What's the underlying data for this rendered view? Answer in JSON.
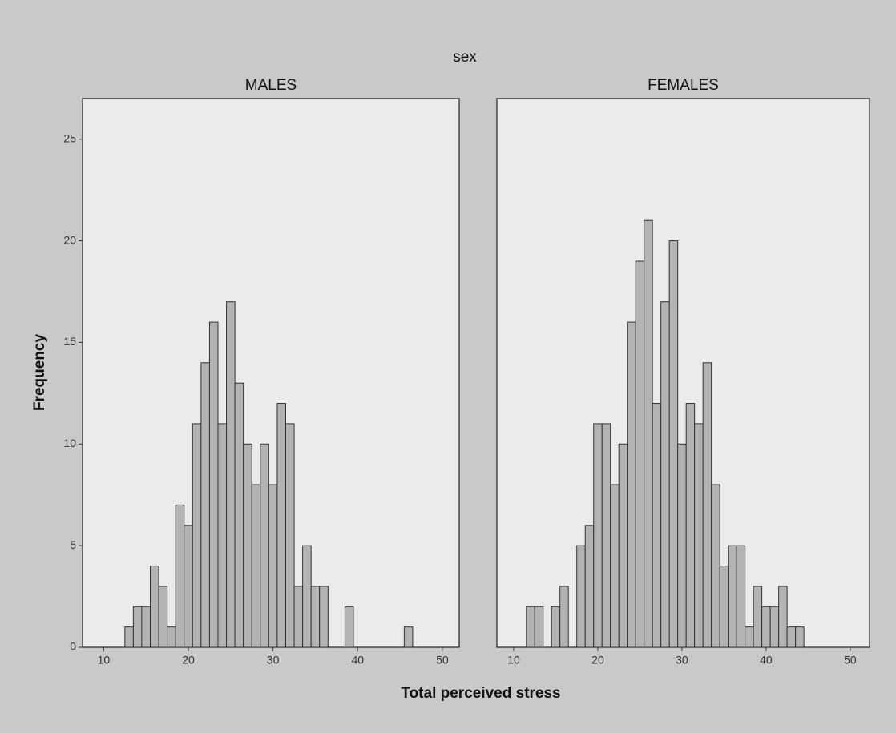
{
  "title": "sex",
  "x_label": "Total perceived stress",
  "y_label": "Frequency",
  "chart_data": [
    {
      "type": "histogram",
      "title": "MALES",
      "color": "#b3b3b3",
      "bins": [
        12.5,
        13.5,
        14.5,
        15.5,
        16.5,
        17.5,
        18.5,
        19.5,
        20.5,
        21.5,
        22.5,
        23.5,
        24.5,
        25.5,
        26.5,
        27.5,
        28.5,
        29.5,
        30.5,
        31.5,
        32.5,
        33.5,
        34.5,
        35.5,
        36.5,
        37.5,
        38.5,
        39.5,
        40.5,
        41.5,
        42.5,
        43.5,
        44.5,
        45.5,
        46.5
      ],
      "counts": [
        1,
        2,
        2,
        4,
        3,
        1,
        7,
        6,
        11,
        14,
        16,
        11,
        17,
        13,
        10,
        8,
        10,
        8,
        12,
        11,
        3,
        5,
        3,
        3,
        0,
        0,
        2,
        0,
        0,
        0,
        0,
        0,
        0,
        1
      ],
      "xlim": [
        7.5,
        52
      ],
      "xticks": [
        10,
        20,
        30,
        40,
        50
      ],
      "ylim": [
        0,
        27
      ],
      "yticks": [
        0,
        5,
        10,
        15,
        20,
        25
      ]
    },
    {
      "type": "histogram",
      "title": "FEMALES",
      "color": "#b3b3b3",
      "bins": [
        11.5,
        12.5,
        13.5,
        14.5,
        15.5,
        16.5,
        17.5,
        18.5,
        19.5,
        20.5,
        21.5,
        22.5,
        23.5,
        24.5,
        25.5,
        26.5,
        27.5,
        28.5,
        29.5,
        30.5,
        31.5,
        32.5,
        33.5,
        34.5,
        35.5,
        36.5,
        37.5,
        38.5,
        39.5,
        40.5,
        41.5,
        42.5,
        43.5,
        44.5
      ],
      "counts": [
        2,
        2,
        0,
        2,
        3,
        0,
        5,
        6,
        11,
        11,
        8,
        10,
        16,
        19,
        21,
        12,
        17,
        20,
        10,
        12,
        11,
        14,
        8,
        4,
        5,
        5,
        1,
        3,
        2,
        2,
        3,
        1,
        1
      ],
      "xlim": [
        8,
        52.3
      ],
      "xticks": [
        10,
        20,
        30,
        40,
        50
      ],
      "ylim": [
        0,
        27
      ]
    }
  ]
}
